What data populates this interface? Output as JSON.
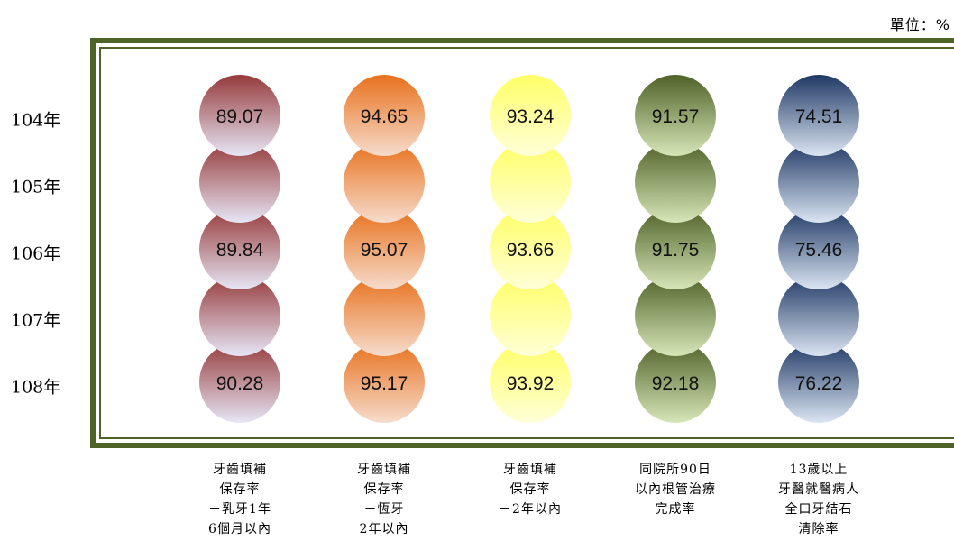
{
  "unit_label": "單位：%",
  "chart_data": {
    "type": "bubble-table",
    "rows": [
      "104年",
      "105年",
      "106年",
      "107年",
      "108年"
    ],
    "categories": [
      "牙齒填補\n保存率\n－乳牙1年\n6個月以內",
      "牙齒填補\n保存率\n－恆牙\n2年以內",
      "牙齒填補\n保存率\n－2年以內",
      "同院所90日\n以內根管治療\n完成率",
      "13歲以上\n牙醫就醫病人\n全口牙結石\n清除率"
    ],
    "series": [
      {
        "values": [
          89.07,
          null,
          89.84,
          null,
          90.28
        ],
        "colors": [
          "#963a3a",
          "#e6e6f5"
        ]
      },
      {
        "values": [
          94.65,
          null,
          95.07,
          null,
          95.17
        ],
        "colors": [
          "#e8711d",
          "#f6dccc"
        ]
      },
      {
        "values": [
          93.24,
          null,
          93.66,
          null,
          93.92
        ],
        "colors": [
          "#ffff66",
          "#ffffd8"
        ]
      },
      {
        "values": [
          91.57,
          null,
          91.75,
          null,
          92.18
        ],
        "colors": [
          "#4f6228",
          "#d7e6b8"
        ]
      },
      {
        "values": [
          74.51,
          null,
          75.46,
          null,
          76.22
        ],
        "colors": [
          "#1f3864",
          "#dbe5f3"
        ]
      }
    ]
  }
}
